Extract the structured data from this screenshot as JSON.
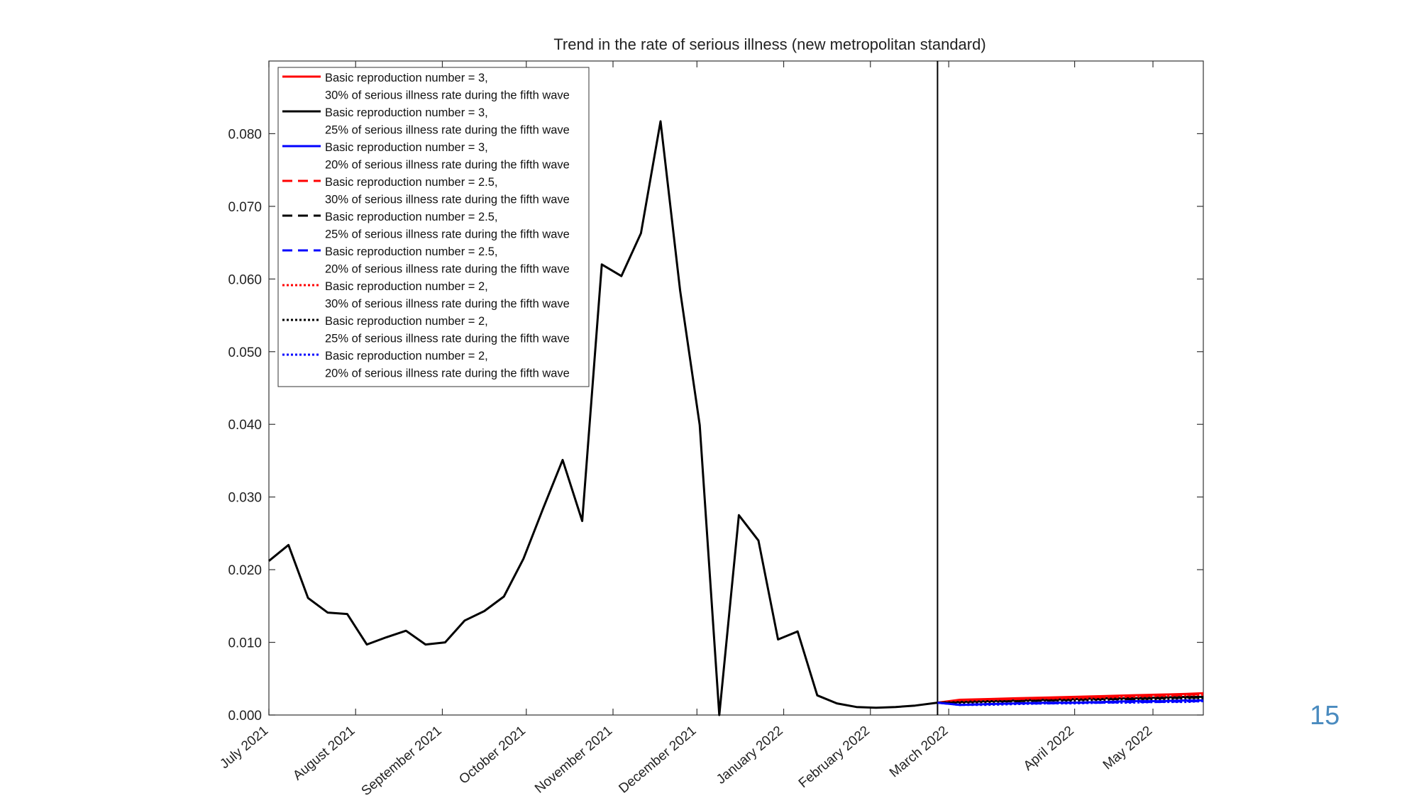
{
  "slide": {
    "page_number": "15"
  },
  "colors": {
    "red": "#ff0000",
    "black": "#000000",
    "blue": "#0000ff",
    "page_number": "#4a8bbf"
  },
  "chart_data": {
    "type": "line",
    "title": "Trend in the rate of serious illness (new metropolitan standard)",
    "xlabel": "",
    "ylabel": "",
    "ylim": [
      0,
      0.09
    ],
    "yticks": [
      "0.000",
      "0.010",
      "0.020",
      "0.030",
      "0.040",
      "0.050",
      "0.060",
      "0.070",
      "0.080"
    ],
    "x_unit": "weekly, 2021-07-01 to 2022-05-31",
    "xlim": [
      "2021-07-01",
      "2022-05-31"
    ],
    "xticks": [
      {
        "date": "2021-07-01",
        "label": "July 2021"
      },
      {
        "date": "2021-08-01",
        "label": "August 2021"
      },
      {
        "date": "2021-09-01",
        "label": "September 2021"
      },
      {
        "date": "2021-10-01",
        "label": "October 2021"
      },
      {
        "date": "2021-11-01",
        "label": "November 2021"
      },
      {
        "date": "2021-12-01",
        "label": "December 2021"
      },
      {
        "date": "2022-01-01",
        "label": "January 2022"
      },
      {
        "date": "2022-02-01",
        "label": "February 2022"
      },
      {
        "date": "2022-03-01",
        "label": "March 2022"
      },
      {
        "date": "2022-04-15",
        "label": "April 2022"
      },
      {
        "date": "2022-05-13",
        "label": "May 2022"
      }
    ],
    "vline": "2022-02-25",
    "grid": false,
    "legend_position": "top-left",
    "observed": {
      "x": [
        "2021-07-01",
        "2021-07-08",
        "2021-07-15",
        "2021-07-22",
        "2021-07-29",
        "2021-08-05",
        "2021-08-12",
        "2021-08-19",
        "2021-08-26",
        "2021-09-02",
        "2021-09-09",
        "2021-09-16",
        "2021-09-23",
        "2021-09-30",
        "2021-10-07",
        "2021-10-14",
        "2021-10-21",
        "2021-10-28",
        "2021-11-04",
        "2021-11-11",
        "2021-11-18",
        "2021-11-25",
        "2021-12-02",
        "2021-12-09",
        "2021-12-16",
        "2021-12-23",
        "2021-12-30",
        "2022-01-06",
        "2022-01-13",
        "2022-01-20",
        "2022-01-27",
        "2022-02-03",
        "2022-02-10",
        "2022-02-17",
        "2022-02-25"
      ],
      "y": [
        0.0212,
        0.0234,
        0.0161,
        0.0141,
        0.0139,
        0.0097,
        0.0107,
        0.0116,
        0.0097,
        0.01,
        0.013,
        0.0143,
        0.0163,
        0.0215,
        0.0284,
        0.0351,
        0.0267,
        0.062,
        0.0604,
        0.0663,
        0.0817,
        0.0584,
        0.0399,
        0.0,
        0.0275,
        0.024,
        0.0104,
        0.0115,
        0.0027,
        0.0016,
        0.0011,
        0.001,
        0.0011,
        0.0013,
        0.0017
      ]
    },
    "projection_x": [
      "2022-02-25",
      "2022-03-05",
      "2022-03-15",
      "2022-03-25",
      "2022-04-05",
      "2022-04-15",
      "2022-04-25",
      "2022-05-05",
      "2022-05-15",
      "2022-05-25",
      "2022-05-31"
    ],
    "series": [
      {
        "name": "Basic reproduction number = 3, 30% of serious illness rate during the fifth wave",
        "color": "red",
        "style": "solid",
        "values": [
          0.0017,
          0.0021,
          0.0022,
          0.0023,
          0.0024,
          0.0025,
          0.0026,
          0.0027,
          0.0028,
          0.0029,
          0.003
        ]
      },
      {
        "name": "Basic reproduction number = 3, 25% of serious illness rate during the fifth wave",
        "color": "black",
        "style": "solid",
        "values": [
          0.0017,
          0.0018,
          0.0019,
          0.002,
          0.0021,
          0.0022,
          0.0023,
          0.0023,
          0.0024,
          0.0025,
          0.0025
        ]
      },
      {
        "name": "Basic reproduction number = 3, 20% of serious illness rate during the fifth wave",
        "color": "blue",
        "style": "solid",
        "values": [
          0.0017,
          0.0014,
          0.0015,
          0.0016,
          0.0017,
          0.0017,
          0.0018,
          0.0019,
          0.0019,
          0.002,
          0.002
        ]
      },
      {
        "name": "Basic reproduction number = 2.5, 30% of serious illness rate during the fifth wave",
        "color": "red",
        "style": "dashed",
        "values": [
          0.0017,
          0.002,
          0.0021,
          0.0022,
          0.0023,
          0.0024,
          0.0025,
          0.0026,
          0.0027,
          0.0028,
          0.0029
        ]
      },
      {
        "name": "Basic reproduction number = 2.5, 25% of serious illness rate during the fifth wave",
        "color": "black",
        "style": "dashed",
        "values": [
          0.0017,
          0.0018,
          0.0019,
          0.0019,
          0.002,
          0.0021,
          0.0022,
          0.0022,
          0.0023,
          0.0024,
          0.0024
        ]
      },
      {
        "name": "Basic reproduction number = 2.5, 20% of serious illness rate during the fifth wave",
        "color": "blue",
        "style": "dashed",
        "values": [
          0.0017,
          0.0014,
          0.0015,
          0.0016,
          0.0016,
          0.0017,
          0.0017,
          0.0018,
          0.0018,
          0.0019,
          0.0019
        ]
      },
      {
        "name": "Basic reproduction number = 2, 30% of serious illness rate during the fifth wave",
        "color": "red",
        "style": "dotted",
        "values": [
          0.0017,
          0.002,
          0.002,
          0.0021,
          0.0022,
          0.0023,
          0.0024,
          0.0025,
          0.0026,
          0.0027,
          0.0028
        ]
      },
      {
        "name": "Basic reproduction number = 2, 25% of serious illness rate during the fifth wave",
        "color": "black",
        "style": "dotted",
        "values": [
          0.0017,
          0.0017,
          0.0018,
          0.0019,
          0.002,
          0.002,
          0.0021,
          0.0022,
          0.0022,
          0.0023,
          0.0023
        ]
      },
      {
        "name": "Basic reproduction number = 2, 20% of serious illness rate during the fifth wave",
        "color": "blue",
        "style": "dotted",
        "values": [
          0.0017,
          0.0014,
          0.0014,
          0.0015,
          0.0016,
          0.0016,
          0.0017,
          0.0017,
          0.0018,
          0.0018,
          0.0019
        ]
      }
    ],
    "legend": [
      {
        "line1": "Basic reproduction number = 3,",
        "line2": "30% of serious illness rate during the fifth wave",
        "color": "red",
        "style": "solid"
      },
      {
        "line1": "Basic reproduction number = 3,",
        "line2": "25% of serious illness rate during the fifth wave",
        "color": "black",
        "style": "solid"
      },
      {
        "line1": "Basic reproduction number = 3,",
        "line2": "20% of serious illness rate during the fifth wave",
        "color": "blue",
        "style": "solid"
      },
      {
        "line1": "Basic reproduction number = 2.5,",
        "line2": "30% of serious illness rate during the fifth wave",
        "color": "red",
        "style": "dashed"
      },
      {
        "line1": "Basic reproduction number = 2.5,",
        "line2": "25% of serious illness rate during the fifth wave",
        "color": "black",
        "style": "dashed"
      },
      {
        "line1": "Basic reproduction number = 2.5,",
        "line2": "20% of serious illness rate during the fifth wave",
        "color": "blue",
        "style": "dashed"
      },
      {
        "line1": "Basic reproduction number = 2,",
        "line2": "30% of serious illness rate during the fifth wave",
        "color": "red",
        "style": "dotted"
      },
      {
        "line1": "Basic reproduction number = 2,",
        "line2": "25% of serious illness rate during the fifth wave",
        "color": "black",
        "style": "dotted"
      },
      {
        "line1": "Basic reproduction number = 2,",
        "line2": "20% of serious illness rate during the fifth wave",
        "color": "blue",
        "style": "dotted"
      }
    ]
  }
}
